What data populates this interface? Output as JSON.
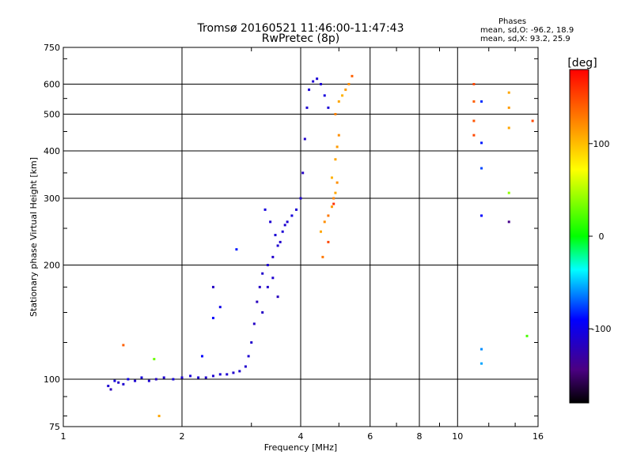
{
  "title": {
    "line1": "Tromsø 20160521 11:46:00-11:47:43",
    "line2": "RwPretec (8p)"
  },
  "phase_box": {
    "header": "Phases",
    "line_o": "mean, sd,O: -96.2, 18.9",
    "line_x": "mean, sd,X:  93.2, 25.9"
  },
  "chart_data": {
    "type": "scatter",
    "xlabel": "Frequency [MHz]",
    "ylabel": "Stationary phase Virtual Height [km]",
    "xscale": "log",
    "yscale": "log",
    "xlim": [
      1,
      16
    ],
    "ylim": [
      75,
      750
    ],
    "grid": true,
    "x_ticks": [
      1,
      2,
      4,
      6,
      8,
      10,
      16
    ],
    "x_tick_labels": [
      "1",
      "2",
      "4",
      "6",
      "8",
      "10",
      "16"
    ],
    "y_ticks": [
      75,
      100,
      200,
      300,
      400,
      500,
      600,
      750
    ],
    "y_tick_labels": [
      "75",
      "100",
      "200",
      "300",
      "400",
      "500",
      "600",
      "750"
    ],
    "colorbar": {
      "label": "[deg]",
      "range": [
        -180,
        180
      ],
      "ticks": [
        100,
        0,
        -100
      ],
      "tick_labels": [
        "100",
        "0",
        "-100"
      ]
    },
    "series": [
      {
        "points": [
          [
            1.3,
            96,
            -110
          ],
          [
            1.32,
            94,
            -120
          ],
          [
            1.35,
            99,
            -105
          ],
          [
            1.38,
            98,
            -115
          ],
          [
            1.42,
            97,
            -110
          ],
          [
            1.46,
            100,
            -100
          ],
          [
            1.52,
            99,
            -110
          ],
          [
            1.58,
            101,
            -105
          ],
          [
            1.65,
            99,
            -110
          ],
          [
            1.72,
            100,
            -115
          ],
          [
            1.8,
            101,
            -110
          ],
          [
            1.9,
            100,
            -105
          ],
          [
            2.0,
            101,
            -110
          ],
          [
            2.1,
            102,
            -108
          ],
          [
            2.2,
            101,
            -110
          ],
          [
            2.3,
            101,
            -112
          ],
          [
            2.4,
            102,
            -110
          ],
          [
            2.5,
            103,
            -108
          ],
          [
            2.6,
            103,
            -110
          ],
          [
            2.7,
            104,
            -112
          ],
          [
            2.8,
            105,
            -110
          ],
          [
            2.9,
            108,
            -112
          ],
          [
            2.95,
            115,
            -110
          ],
          [
            3.0,
            125,
            -112
          ],
          [
            3.05,
            140,
            -115
          ],
          [
            3.1,
            160,
            -118
          ],
          [
            3.15,
            175,
            -115
          ],
          [
            3.2,
            190,
            -112
          ],
          [
            3.3,
            200,
            -110
          ],
          [
            3.4,
            210,
            -112
          ],
          [
            3.5,
            225,
            -110
          ],
          [
            3.6,
            245,
            -108
          ],
          [
            3.7,
            260,
            -110
          ],
          [
            3.8,
            270,
            -105
          ],
          [
            3.9,
            280,
            -108
          ],
          [
            4.0,
            300,
            -110
          ],
          [
            4.05,
            350,
            -115
          ],
          [
            4.1,
            430,
            -112
          ],
          [
            4.15,
            520,
            -110
          ],
          [
            4.2,
            580,
            -108
          ],
          [
            4.3,
            610,
            -110
          ],
          [
            4.4,
            620,
            -108
          ],
          [
            4.5,
            600,
            -110
          ],
          [
            4.6,
            560,
            -105
          ],
          [
            4.7,
            520,
            -108
          ],
          [
            3.25,
            280,
            -105
          ],
          [
            3.35,
            260,
            -110
          ],
          [
            3.45,
            240,
            -108
          ],
          [
            3.55,
            230,
            -112
          ],
          [
            3.65,
            255,
            -110
          ],
          [
            3.2,
            150,
            -115
          ],
          [
            3.3,
            175,
            -112
          ],
          [
            3.4,
            185,
            -110
          ],
          [
            3.5,
            165,
            -118
          ],
          [
            2.4,
            145,
            -90
          ],
          [
            2.5,
            155,
            -100
          ],
          [
            2.4,
            175,
            -115
          ],
          [
            2.25,
            115,
            -90
          ],
          [
            1.7,
            113,
            30
          ],
          [
            1.42,
            123,
            140
          ],
          [
            1.75,
            80,
            110
          ],
          [
            2.75,
            220,
            -85
          ]
        ]
      },
      {
        "points": [
          [
            4.5,
            245,
            110
          ],
          [
            4.6,
            260,
            120
          ],
          [
            4.7,
            270,
            130
          ],
          [
            4.8,
            285,
            115
          ],
          [
            4.85,
            300,
            125
          ],
          [
            4.9,
            310,
            110
          ],
          [
            4.95,
            330,
            120
          ],
          [
            4.8,
            340,
            105
          ],
          [
            4.9,
            380,
            110
          ],
          [
            4.95,
            410,
            115
          ],
          [
            5.0,
            440,
            120
          ],
          [
            4.9,
            500,
            125
          ],
          [
            5.0,
            540,
            110
          ],
          [
            5.1,
            560,
            105
          ],
          [
            5.2,
            580,
            115
          ],
          [
            5.3,
            600,
            120
          ],
          [
            5.4,
            630,
            140
          ],
          [
            4.85,
            290,
            160
          ],
          [
            4.7,
            230,
            150
          ],
          [
            4.55,
            210,
            130
          ]
        ]
      },
      {
        "points": [
          [
            11.0,
            600,
            150
          ],
          [
            11.0,
            540,
            140
          ],
          [
            11.0,
            480,
            145
          ],
          [
            11.0,
            440,
            150
          ],
          [
            11.5,
            540,
            -80
          ],
          [
            11.5,
            420,
            -85
          ],
          [
            11.5,
            360,
            -75
          ],
          [
            11.5,
            270,
            -90
          ],
          [
            11.5,
            120,
            -60
          ],
          [
            11.5,
            110,
            -55
          ],
          [
            13.5,
            570,
            110
          ],
          [
            13.5,
            520,
            115
          ],
          [
            13.5,
            460,
            110
          ],
          [
            13.5,
            310,
            40
          ],
          [
            13.5,
            260,
            -140
          ],
          [
            15.5,
            480,
            150
          ],
          [
            15.0,
            130,
            20
          ]
        ]
      }
    ]
  }
}
